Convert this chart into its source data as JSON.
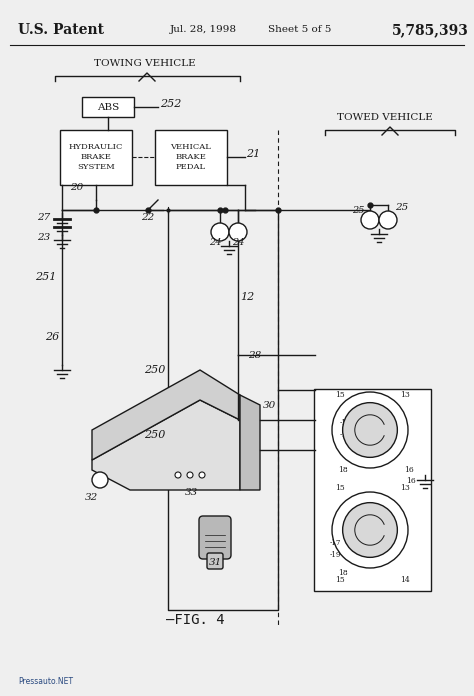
{
  "bg_color": "#efefef",
  "lc": "#1a1a1a",
  "header_text": "U.S. Patent",
  "header_date": "Jul. 28, 1998",
  "header_sheet": "Sheet 5 of 5",
  "header_num": "5,785,393",
  "towing_label": "TOWING VEHICLE",
  "towed_label": "TOWED VEHICLE",
  "fig_label": "—FIG. 4",
  "watermark": "Pressauto.NET",
  "abs_label": "ABS",
  "hbs_label": "HYDRAULIC\nBRAKE\nSYSTEM",
  "vbp_label": "VEHICAL\nBRAKE\nPEDAL"
}
